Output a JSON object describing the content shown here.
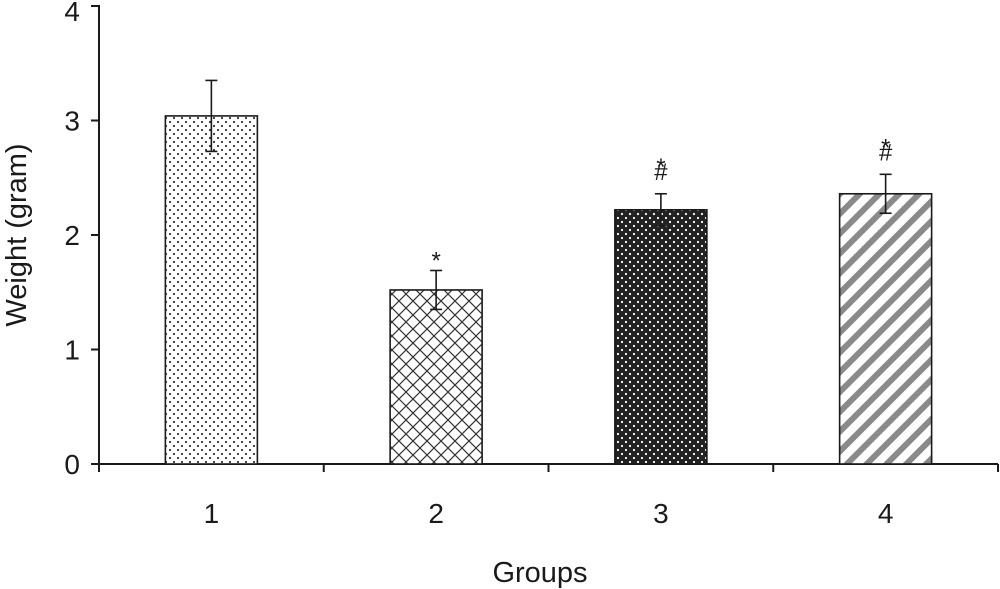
{
  "chart_data": {
    "type": "bar",
    "title": "",
    "xlabel": "Groups",
    "ylabel": "Weight (gram)",
    "categories": [
      "1",
      "2",
      "3",
      "4"
    ],
    "values": [
      3.04,
      1.52,
      2.22,
      2.36
    ],
    "errors": [
      0.31,
      0.17,
      0.14,
      0.17
    ],
    "annotations": [
      [],
      [
        "*"
      ],
      [
        "*",
        "#"
      ],
      [
        "*",
        "#"
      ]
    ],
    "patterns": [
      "light-dots",
      "crosshatch",
      "dark-dots",
      "diagonal-stripes"
    ],
    "ylim": [
      0,
      4
    ],
    "yticks": [
      "0",
      "1",
      "2",
      "3",
      "4"
    ],
    "grid": false,
    "legend": "none"
  }
}
